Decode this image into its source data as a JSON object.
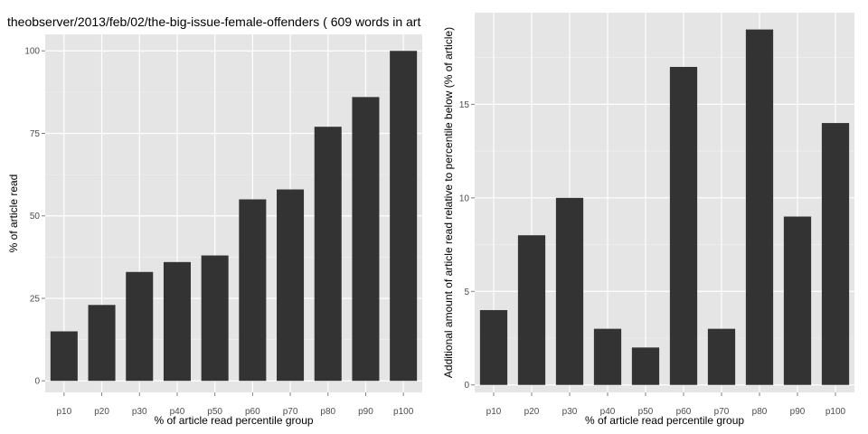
{
  "title": "theobserver/2013/feb/02/the-big-issue-female-offenders ( 609 words in art",
  "colors": {
    "panel_background": "#e5e5e5",
    "grid_major": "#ffffff",
    "grid_minor": "#f2f2f2",
    "bar_fill": "#333333",
    "tick_text": "#4d4d4d"
  },
  "chart_data": [
    {
      "type": "bar",
      "title": "theobserver/2013/feb/02/the-big-issue-female-offenders ( 609 words in art",
      "xlabel": "% of article read percentile group",
      "ylabel": "% of article read",
      "categories": [
        "p10",
        "p20",
        "p30",
        "p40",
        "p50",
        "p60",
        "p70",
        "p80",
        "p90",
        "p100"
      ],
      "values": [
        15,
        23,
        33,
        36,
        38,
        55,
        58,
        77,
        86,
        100
      ],
      "ylim": [
        -3.5,
        105
      ],
      "yticks": [
        0,
        25,
        50,
        75,
        100
      ],
      "grid": true
    },
    {
      "type": "bar",
      "title": "",
      "xlabel": "% of article read percentile group",
      "ylabel": "Additional amount of article read relative to percentile below (% of article)",
      "categories": [
        "p10",
        "p20",
        "p30",
        "p40",
        "p50",
        "p60",
        "p70",
        "p80",
        "p90",
        "p100"
      ],
      "values": [
        4,
        8,
        10,
        3,
        2,
        17,
        3,
        19,
        9,
        14
      ],
      "ylim": [
        -0.4,
        19.9
      ],
      "yticks": [
        0,
        5,
        10,
        15
      ],
      "grid": true
    }
  ]
}
